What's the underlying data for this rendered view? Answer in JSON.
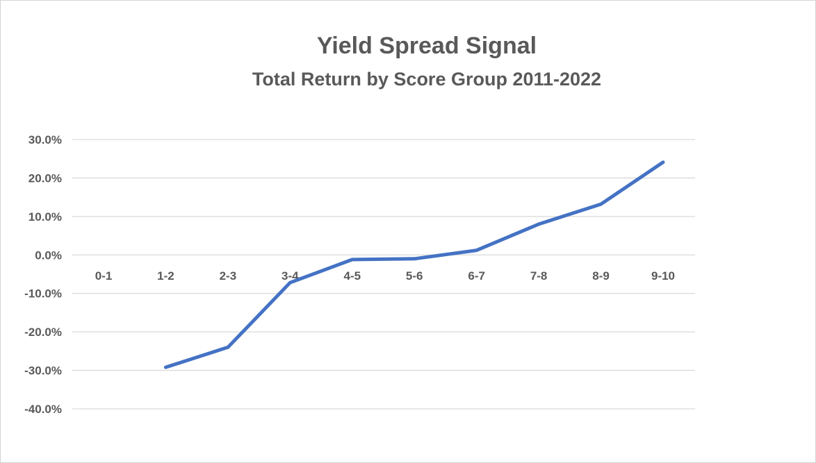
{
  "chart_data": {
    "type": "line",
    "title": "Yield Spread Signal",
    "subtitle": "Total Return by Score Group 2011-2022",
    "categories": [
      "0-1",
      "1-2",
      "2-3",
      "3-4",
      "4-5",
      "5-6",
      "6-7",
      "7-8",
      "8-9",
      "9-10"
    ],
    "values": [
      null,
      -29.2,
      -24.0,
      -7.2,
      -1.2,
      -1.0,
      1.2,
      8.0,
      13.2,
      24.1
    ],
    "values_unit": "percent",
    "xlabel": "",
    "ylabel": "",
    "ylim": [
      -40,
      30
    ],
    "y_ticks": [
      {
        "value": 30,
        "label": "30.0%"
      },
      {
        "value": 20,
        "label": "20.0%"
      },
      {
        "value": 10,
        "label": "10.0%"
      },
      {
        "value": 0,
        "label": "0.0%"
      },
      {
        "value": -10,
        "label": "-10.0%"
      },
      {
        "value": -20,
        "label": "-20.0%"
      },
      {
        "value": -30,
        "label": "-30.0%"
      },
      {
        "value": -40,
        "label": "-40.0%"
      }
    ],
    "grid": true,
    "legend": "none",
    "colors": {
      "line": "#4472C4",
      "text": "#595959",
      "gridline": "#D9D9D9",
      "background": "#FFFFFF"
    },
    "line_width": 5
  }
}
